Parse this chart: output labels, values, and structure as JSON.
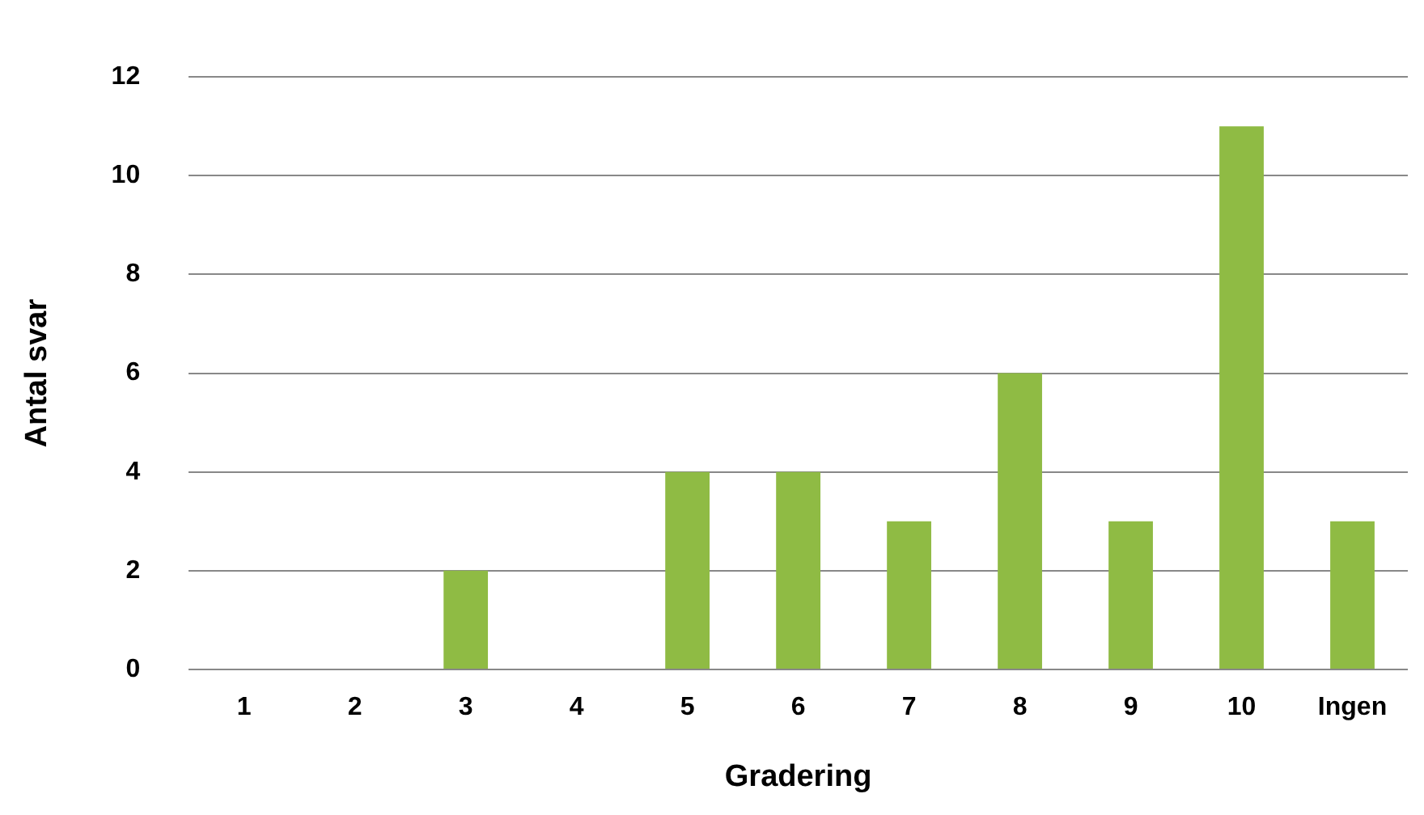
{
  "chart_data": {
    "type": "bar",
    "xlabel": "Gradering",
    "ylabel": "Antal svar",
    "categories": [
      "1",
      "2",
      "3",
      "4",
      "5",
      "6",
      "7",
      "8",
      "9",
      "10",
      "Ingen"
    ],
    "values": [
      0,
      0,
      2,
      0,
      4,
      4,
      3,
      6,
      3,
      11,
      3
    ],
    "color": "#8fbb44",
    "ylim": [
      0,
      12
    ],
    "yticks": [
      0,
      2,
      4,
      6,
      8,
      10,
      12
    ],
    "grid": "y"
  }
}
